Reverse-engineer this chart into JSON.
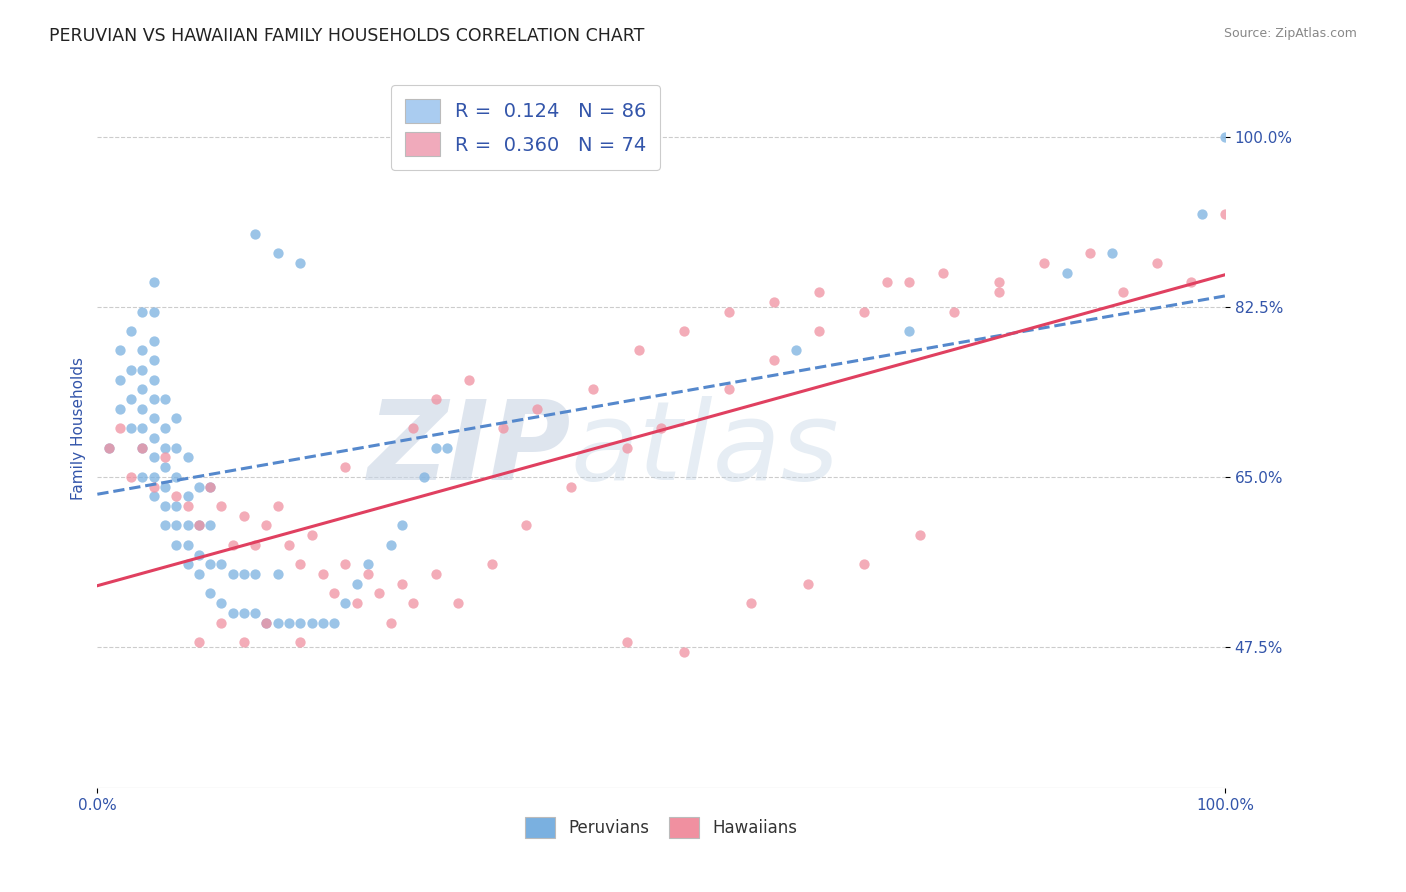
{
  "title": "PERUVIAN VS HAWAIIAN FAMILY HOUSEHOLDS CORRELATION CHART",
  "source_text": "Source: ZipAtlas.com",
  "ylabel": "Family Households",
  "x_tick_labels": [
    "0.0%",
    "100.0%"
  ],
  "y_tick_labels": [
    "47.5%",
    "65.0%",
    "82.5%",
    "100.0%"
  ],
  "y_tick_values": [
    0.475,
    0.65,
    0.825,
    1.0
  ],
  "xlim": [
    0.0,
    1.0
  ],
  "ylim": [
    0.33,
    1.07
  ],
  "legend_entries": [
    {
      "label": "R =  0.124   N = 86",
      "color": "#aaccf0"
    },
    {
      "label": "R =  0.360   N = 74",
      "color": "#f0aabb"
    }
  ],
  "watermark": "ZIPatlas",
  "watermark_color": "#cdd8ea",
  "peruvian_color": "#7ab0e0",
  "hawaiian_color": "#f090a0",
  "peruvian_line_color": "#5588cc",
  "hawaiian_line_color": "#e04060",
  "title_color": "#222222",
  "tick_label_color": "#3355aa",
  "source_color": "#888888",
  "background_color": "#ffffff",
  "grid_color": "#cccccc",
  "peruvian_x": [
    0.01,
    0.02,
    0.02,
    0.02,
    0.03,
    0.03,
    0.03,
    0.03,
    0.04,
    0.04,
    0.04,
    0.04,
    0.04,
    0.04,
    0.04,
    0.04,
    0.05,
    0.05,
    0.05,
    0.05,
    0.05,
    0.05,
    0.05,
    0.05,
    0.05,
    0.05,
    0.05,
    0.06,
    0.06,
    0.06,
    0.06,
    0.06,
    0.06,
    0.06,
    0.07,
    0.07,
    0.07,
    0.07,
    0.07,
    0.07,
    0.08,
    0.08,
    0.08,
    0.08,
    0.08,
    0.09,
    0.09,
    0.09,
    0.09,
    0.1,
    0.1,
    0.1,
    0.1,
    0.11,
    0.11,
    0.12,
    0.12,
    0.13,
    0.13,
    0.14,
    0.14,
    0.15,
    0.16,
    0.16,
    0.17,
    0.18,
    0.19,
    0.2,
    0.21,
    0.22,
    0.23,
    0.24,
    0.26,
    0.27,
    0.29,
    0.31,
    0.14,
    0.16,
    0.18,
    0.3,
    0.62,
    0.72,
    0.86,
    0.9,
    0.98,
    1.0
  ],
  "peruvian_y": [
    0.68,
    0.72,
    0.75,
    0.78,
    0.7,
    0.73,
    0.76,
    0.8,
    0.65,
    0.68,
    0.7,
    0.72,
    0.74,
    0.76,
    0.78,
    0.82,
    0.63,
    0.65,
    0.67,
    0.69,
    0.71,
    0.73,
    0.75,
    0.77,
    0.79,
    0.82,
    0.85,
    0.6,
    0.62,
    0.64,
    0.66,
    0.68,
    0.7,
    0.73,
    0.58,
    0.6,
    0.62,
    0.65,
    0.68,
    0.71,
    0.56,
    0.58,
    0.6,
    0.63,
    0.67,
    0.55,
    0.57,
    0.6,
    0.64,
    0.53,
    0.56,
    0.6,
    0.64,
    0.52,
    0.56,
    0.51,
    0.55,
    0.51,
    0.55,
    0.51,
    0.55,
    0.5,
    0.5,
    0.55,
    0.5,
    0.5,
    0.5,
    0.5,
    0.5,
    0.52,
    0.54,
    0.56,
    0.58,
    0.6,
    0.65,
    0.68,
    0.9,
    0.88,
    0.87,
    0.68,
    0.78,
    0.8,
    0.86,
    0.88,
    0.92,
    1.0
  ],
  "hawaiian_x": [
    0.01,
    0.02,
    0.03,
    0.04,
    0.05,
    0.06,
    0.07,
    0.08,
    0.09,
    0.1,
    0.11,
    0.12,
    0.13,
    0.14,
    0.15,
    0.16,
    0.17,
    0.18,
    0.19,
    0.2,
    0.21,
    0.22,
    0.23,
    0.24,
    0.25,
    0.26,
    0.27,
    0.28,
    0.3,
    0.32,
    0.35,
    0.38,
    0.42,
    0.47,
    0.5,
    0.56,
    0.6,
    0.64,
    0.68,
    0.72,
    0.76,
    0.8,
    0.84,
    0.88,
    0.91,
    0.94,
    0.97,
    1.0,
    0.09,
    0.11,
    0.13,
    0.15,
    0.18,
    0.22,
    0.28,
    0.3,
    0.33,
    0.36,
    0.39,
    0.44,
    0.48,
    0.52,
    0.56,
    0.6,
    0.64,
    0.7,
    0.75,
    0.8,
    0.47,
    0.52,
    0.58,
    0.63,
    0.68,
    0.73
  ],
  "hawaiian_y": [
    0.68,
    0.7,
    0.65,
    0.68,
    0.64,
    0.67,
    0.63,
    0.62,
    0.6,
    0.64,
    0.62,
    0.58,
    0.61,
    0.58,
    0.6,
    0.62,
    0.58,
    0.56,
    0.59,
    0.55,
    0.53,
    0.56,
    0.52,
    0.55,
    0.53,
    0.5,
    0.54,
    0.52,
    0.55,
    0.52,
    0.56,
    0.6,
    0.64,
    0.68,
    0.7,
    0.74,
    0.77,
    0.8,
    0.82,
    0.85,
    0.82,
    0.85,
    0.87,
    0.88,
    0.84,
    0.87,
    0.85,
    0.92,
    0.48,
    0.5,
    0.48,
    0.5,
    0.48,
    0.66,
    0.7,
    0.73,
    0.75,
    0.7,
    0.72,
    0.74,
    0.78,
    0.8,
    0.82,
    0.83,
    0.84,
    0.85,
    0.86,
    0.84,
    0.48,
    0.47,
    0.52,
    0.54,
    0.56,
    0.59
  ]
}
